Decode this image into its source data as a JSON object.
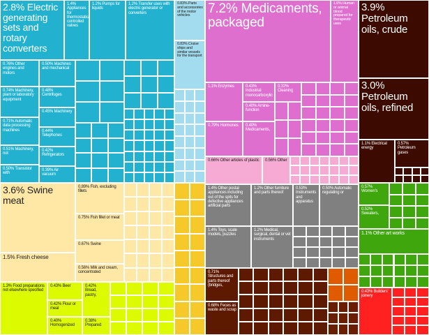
{
  "chart_data": {
    "type": "treemap",
    "title": "",
    "unit": "% of exports",
    "colors": {
      "machinery": "#22b2cf",
      "chemicals": "#df6fcf",
      "minerals": "#3d0a00",
      "animal": "#ffe7a6",
      "vegetable": "#ddfb00",
      "metals": "#f5c92a",
      "misc": "#808080",
      "wood": "#5e1a00",
      "textiles": "#3fa60e",
      "transport": "#a3dcee",
      "plastics": "#f5abd3",
      "instruments": "#ff2020"
    },
    "groups": [
      {
        "name": "machinery",
        "labels": [
          {
            "text": "2.8% Electric generating sets and rotary converters",
            "value": 2.8
          },
          {
            "text": "1.4% Appliances for thermostatically controlled valves",
            "value": 1.4
          },
          {
            "text": "1.2% Pumps for liquids",
            "value": 1.2
          },
          {
            "text": "1.2% Transfer uses with electric generator or converters",
            "value": 1.2
          },
          {
            "text": "0.76% Other engines and motors",
            "value": 0.76
          },
          {
            "text": "0.50% Machines and mechanical",
            "value": 0.5
          },
          {
            "text": "0.74% Machinery, plant or laboratory equipment",
            "value": 0.74
          },
          {
            "text": "0.48% Centrifuges",
            "value": 0.48
          },
          {
            "text": "0.45% Machinery",
            "value": 0.45
          },
          {
            "text": "0.71% Automatic data processing machines",
            "value": 0.71
          },
          {
            "text": "0.44% Telephones",
            "value": 0.44
          },
          {
            "text": "0.51% Machinery, not",
            "value": 0.51
          },
          {
            "text": "0.42% Refrigerators",
            "value": 0.42
          },
          {
            "text": "0.50% Transistor with",
            "value": 0.5
          },
          {
            "text": "0.39% Air vacuum",
            "value": 0.39
          }
        ]
      },
      {
        "name": "transport",
        "labels": [
          {
            "text": "0.83% Parts and accessories of the motor vehicles",
            "value": 0.83
          },
          {
            "text": "0.83% Cruise ships and similar vessels for the transport",
            "value": 0.83
          }
        ]
      },
      {
        "name": "chemicals",
        "labels": [
          {
            "text": "7.2% Medicaments, packaged",
            "value": 7.2
          },
          {
            "text": "1.6% Human or animal blood prepared for therapeutic uses",
            "value": 1.6
          },
          {
            "text": "1.1% Enzymes",
            "value": 1.1
          },
          {
            "text": "0.43% Industrial monocarboxylic",
            "value": 0.43
          },
          {
            "text": "0.32% Cleaning",
            "value": 0.32
          },
          {
            "text": "0.40% Amine-function",
            "value": 0.4
          },
          {
            "text": "0.79% Hormones",
            "value": 0.79
          },
          {
            "text": "0.40% Medicaments,",
            "value": 0.4
          }
        ]
      },
      {
        "name": "plastics",
        "labels": [
          {
            "text": "0.66% Other articles of plastic",
            "value": 0.66
          },
          {
            "text": "0.56% Other",
            "value": 0.56
          }
        ]
      },
      {
        "name": "minerals",
        "labels": [
          {
            "text": "3.9% Petroleum oils, crude",
            "value": 3.9
          },
          {
            "text": "3.0% Petroleum oils, refined",
            "value": 3.0
          },
          {
            "text": "1.1% Electrical energy",
            "value": 1.1
          },
          {
            "text": "0.57% Petroleum gases",
            "value": 0.57
          }
        ]
      },
      {
        "name": "animal",
        "labels": [
          {
            "text": "3.6% Swine meat",
            "value": 3.6
          },
          {
            "text": "0.89% Fish, excluding fillets",
            "value": 0.89
          },
          {
            "text": "0.75% Fish fillet or meat",
            "value": 0.75
          },
          {
            "text": "0.67% Swine",
            "value": 0.67
          },
          {
            "text": "1.5% Fresh cheese",
            "value": 1.5
          },
          {
            "text": "0.56% Milk and cream, concentrated",
            "value": 0.56
          }
        ]
      },
      {
        "name": "vegetable",
        "labels": [
          {
            "text": "1.3% Food preparations not elsewhere specified",
            "value": 1.3
          },
          {
            "text": "0.43% Beer",
            "value": 0.43
          },
          {
            "text": "0.42% Bread, pastry,",
            "value": 0.42
          },
          {
            "text": "0.42% Flour or meal",
            "value": 0.42
          },
          {
            "text": "0.38% Prepared",
            "value": 0.38
          },
          {
            "text": "0.40% Homogenized",
            "value": 0.4
          }
        ]
      },
      {
        "name": "misc",
        "labels": [
          {
            "text": "1.4% Other postal appliances including out of the spits for defective appliances artificial parts",
            "value": 1.4
          },
          {
            "text": "1.2% Other furniture and parts thereof",
            "value": 1.2
          },
          {
            "text": "0.53% Instruments and apparatus",
            "value": 0.53
          },
          {
            "text": "0.50% Automatic regulating or",
            "value": 0.5
          },
          {
            "text": "1.4% Toys, scale models, puzzles",
            "value": 1.4
          },
          {
            "text": "1.2% Medical, surgical, dental or vet instruments",
            "value": 1.2
          }
        ]
      },
      {
        "name": "wood",
        "labels": [
          {
            "text": "0.71% Structures and parts thereof (bridges,",
            "value": 0.71
          },
          {
            "text": "0.68% Feces as waste and scrap",
            "value": 0.68
          }
        ]
      },
      {
        "name": "textiles",
        "labels": [
          {
            "text": "0.57% Women's",
            "value": 0.57
          },
          {
            "text": "0.52% Sweaters,",
            "value": 0.52
          },
          {
            "text": "1.1% Other art works",
            "value": 1.1
          }
        ]
      },
      {
        "name": "instruments",
        "labels": [
          {
            "text": "0.43% Builders' joinery",
            "value": 0.43
          }
        ]
      }
    ]
  }
}
